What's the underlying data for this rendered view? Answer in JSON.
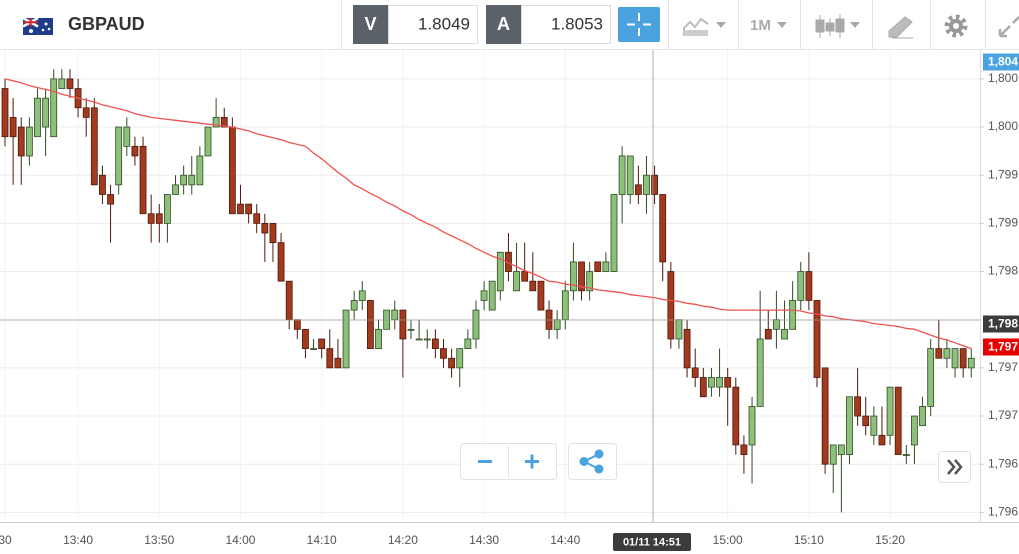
{
  "toolbar": {
    "symbol": "GBPAUD",
    "bid_label": "V",
    "bid": 1.8049,
    "ask_label": "A",
    "ask": 1.8053,
    "interval": "1M"
  },
  "chart_data": {
    "type": "candlestick",
    "categories": [
      "30",
      null,
      null,
      null,
      null,
      null,
      null,
      null,
      null,
      "13:40",
      null,
      null,
      null,
      null,
      null,
      null,
      null,
      null,
      null,
      "13:50",
      null,
      null,
      null,
      null,
      null,
      null,
      null,
      null,
      null,
      "14:00",
      null,
      null,
      null,
      null,
      null,
      null,
      null,
      null,
      null,
      "14:10",
      null,
      null,
      null,
      null,
      null,
      null,
      null,
      null,
      null,
      "14:20",
      null,
      null,
      null,
      null,
      null,
      null,
      null,
      null,
      null,
      "14:30",
      null,
      null,
      null,
      null,
      null,
      null,
      null,
      null,
      null,
      "14:40",
      null,
      null,
      null,
      null,
      null,
      null,
      null,
      null,
      null,
      null,
      null,
      null,
      null,
      null,
      null,
      null,
      null,
      null,
      null,
      "15:00",
      null,
      null,
      null,
      null,
      null,
      null,
      null,
      null,
      null,
      "15:10",
      null,
      null,
      null,
      null,
      null,
      null,
      null,
      null,
      null,
      "15:20",
      null,
      null,
      null,
      null,
      null,
      null,
      null,
      null,
      null,
      null
    ],
    "open": [
      1.8004,
      1.8001,
      1.8,
      1.7997,
      1.7999,
      1.8,
      1.7999,
      1.8004,
      1.8005,
      1.8004,
      1.8002,
      1.8002,
      1.7995,
      1.7993,
      1.7994,
      1.7998,
      1.7998,
      1.7998,
      1.7991,
      1.7991,
      1.799,
      1.7993,
      1.7994,
      1.7994,
      1.7994,
      1.7997,
      1.8,
      1.8001,
      1.8,
      1.7992,
      1.7992,
      1.7991,
      1.799,
      1.799,
      1.7988,
      1.7984,
      1.798,
      1.7979,
      1.7977,
      1.7978,
      1.7977,
      1.7976,
      1.7975,
      1.7981,
      1.7982,
      1.7982,
      1.7977,
      1.7979,
      1.798,
      1.7981,
      1.7979,
      1.7978,
      1.7978,
      1.7978,
      1.7977,
      1.7976,
      1.7975,
      1.7977,
      1.7978,
      1.7982,
      1.7981,
      1.7983,
      1.7987,
      1.7983,
      1.7985,
      1.7984,
      1.7984,
      1.7981,
      1.7979,
      1.798,
      1.7983,
      1.7986,
      1.7983,
      1.7986,
      1.7985,
      1.7985,
      1.7993,
      1.7993,
      1.7994,
      1.7993,
      1.7995,
      1.7993,
      1.7985,
      1.7978,
      1.7979,
      1.7975,
      1.7974,
      1.7973,
      1.7973,
      1.7974,
      1.7973,
      1.7967,
      1.7967,
      1.7971,
      1.7979,
      1.7979,
      1.7978,
      1.7979,
      1.7982,
      1.7985,
      1.7982,
      1.7975,
      1.7965,
      1.7966,
      1.7966,
      1.7972,
      1.797,
      1.7968,
      1.7968,
      1.7968,
      1.7973,
      1.7966,
      1.7967,
      1.7969,
      1.7971,
      1.7977,
      1.7976,
      1.7975,
      1.7977,
      1.7975
    ],
    "high": [
      1.8005,
      1.8003,
      1.8001,
      1.8001,
      1.8004,
      1.8004,
      1.8006,
      1.8006,
      1.8006,
      1.8005,
      1.8003,
      1.8003,
      1.7996,
      1.7994,
      1.8,
      1.8001,
      1.7999,
      1.7999,
      1.7993,
      1.7992,
      1.7993,
      1.7995,
      1.7996,
      1.7997,
      1.7998,
      1.8,
      1.8003,
      1.8002,
      1.8001,
      1.7994,
      1.7992,
      1.7992,
      1.7991,
      1.799,
      1.7989,
      1.7984,
      1.798,
      1.7979,
      1.7978,
      1.7978,
      1.7979,
      1.7978,
      1.7981,
      1.7983,
      1.7984,
      1.7982,
      1.798,
      1.7981,
      1.7982,
      1.7981,
      1.798,
      1.798,
      1.7979,
      1.7979,
      1.7978,
      1.7977,
      1.7977,
      1.7979,
      1.7982,
      1.7984,
      1.7984,
      1.7987,
      1.7989,
      1.7988,
      1.7988,
      1.7987,
      1.7984,
      1.7982,
      1.7981,
      1.7984,
      1.7988,
      1.7986,
      1.7986,
      1.7986,
      1.7987,
      1.7993,
      1.7998,
      1.7997,
      1.7996,
      1.7997,
      1.7996,
      1.7993,
      1.7986,
      1.798,
      1.798,
      1.7977,
      1.7975,
      1.7975,
      1.7977,
      1.7975,
      1.7974,
      1.7968,
      1.7972,
      1.7983,
      1.7981,
      1.7983,
      1.7982,
      1.7984,
      1.7986,
      1.7987,
      1.7982,
      1.7975,
      1.7967,
      1.7967,
      1.7972,
      1.7975,
      1.7972,
      1.7971,
      1.7971,
      1.7973,
      1.7973,
      1.7967,
      1.797,
      1.7972,
      1.7978,
      1.798,
      1.7978,
      1.7977,
      1.7977,
      1.7977
    ],
    "low": [
      1.7998,
      1.7994,
      1.7994,
      1.7996,
      1.7999,
      1.7997,
      1.7999,
      1.8004,
      1.8003,
      1.8001,
      1.7999,
      1.7994,
      1.7992,
      1.7988,
      1.7993,
      1.7997,
      1.7996,
      1.7991,
      1.7988,
      1.7988,
      1.7988,
      1.7993,
      1.7993,
      1.7993,
      1.7994,
      1.7997,
      1.8,
      1.8,
      1.7991,
      1.7991,
      1.799,
      1.7989,
      1.7986,
      1.7986,
      1.7984,
      1.7979,
      1.7978,
      1.7976,
      1.7977,
      1.7976,
      1.7975,
      1.7975,
      1.7975,
      1.798,
      1.7981,
      1.7977,
      1.7977,
      1.7979,
      1.7979,
      1.7974,
      1.7978,
      1.7978,
      1.7977,
      1.7976,
      1.7975,
      1.7974,
      1.7973,
      1.7977,
      1.7977,
      1.7981,
      1.7981,
      1.7982,
      1.7984,
      1.7983,
      1.7984,
      1.7983,
      1.7981,
      1.7978,
      1.7978,
      1.7979,
      1.7982,
      1.7982,
      1.7982,
      1.7985,
      1.7985,
      1.7985,
      1.799,
      1.7992,
      1.7992,
      1.7991,
      1.7992,
      1.7984,
      1.7977,
      1.7977,
      1.7974,
      1.7973,
      1.7972,
      1.7972,
      1.7972,
      1.7969,
      1.7966,
      1.7964,
      1.7963,
      1.7971,
      1.7978,
      1.7977,
      1.7978,
      1.7979,
      1.7981,
      1.7981,
      1.7973,
      1.7964,
      1.7962,
      1.796,
      1.7965,
      1.7969,
      1.7968,
      1.7967,
      1.7967,
      1.7967,
      1.7966,
      1.7965,
      1.7965,
      1.7969,
      1.797,
      1.7976,
      1.7975,
      1.7974,
      1.7974,
      1.7974
    ],
    "close": [
      1.7999,
      1.7999,
      1.7997,
      1.8,
      1.8003,
      1.8003,
      1.8005,
      1.8005,
      1.8004,
      1.8002,
      1.8001,
      1.7994,
      1.7993,
      1.7992,
      1.8,
      1.8,
      1.7997,
      1.7991,
      1.799,
      1.799,
      1.7993,
      1.7994,
      1.7995,
      1.7995,
      1.7997,
      1.8,
      1.8001,
      1.8,
      1.7991,
      1.7991,
      1.7991,
      1.799,
      1.7989,
      1.7988,
      1.7984,
      1.798,
      1.7979,
      1.7977,
      1.7977,
      1.7977,
      1.7975,
      1.7975,
      1.7981,
      1.7982,
      1.7983,
      1.7977,
      1.7979,
      1.7981,
      1.7981,
      1.7978,
      1.7979,
      1.7978,
      1.7978,
      1.7977,
      1.7976,
      1.7975,
      1.7977,
      1.7978,
      1.7981,
      1.7983,
      1.7984,
      1.7987,
      1.7985,
      1.7985,
      1.7984,
      1.7983,
      1.7981,
      1.7979,
      1.798,
      1.7983,
      1.7986,
      1.7983,
      1.7985,
      1.7985,
      1.7986,
      1.7993,
      1.7997,
      1.7997,
      1.7993,
      1.7995,
      1.7993,
      1.7986,
      1.7978,
      1.798,
      1.7975,
      1.7974,
      1.7972,
      1.7974,
      1.7974,
      1.7973,
      1.7967,
      1.7966,
      1.7971,
      1.7978,
      1.7978,
      1.798,
      1.7979,
      1.7982,
      1.7985,
      1.7982,
      1.7974,
      1.7965,
      1.7967,
      1.7967,
      1.7972,
      1.797,
      1.7969,
      1.797,
      1.7967,
      1.7973,
      1.7966,
      1.7966,
      1.797,
      1.7971,
      1.7977,
      1.7976,
      1.7977,
      1.7977,
      1.7975,
      1.7976
    ],
    "up_color": "#8dc07a",
    "down_color": "#a3391d",
    "ma": {
      "color": "#ef5350",
      "values": [
        1.8005,
        1.80048,
        1.80046,
        1.80043,
        1.80041,
        1.80039,
        1.80037,
        1.80034,
        1.80032,
        1.8003,
        1.80028,
        1.80026,
        1.80023,
        1.80021,
        1.80019,
        1.80017,
        1.80014,
        1.80012,
        1.8001,
        1.80009,
        1.80008,
        1.80007,
        1.80006,
        1.80005,
        1.80004,
        1.80003,
        1.80002,
        1.80001,
        1.8,
        1.79998,
        1.79996,
        1.79993,
        1.79991,
        1.79989,
        1.79987,
        1.79984,
        1.79982,
        1.7998,
        1.79973,
        1.79967,
        1.7996,
        1.79953,
        1.79947,
        1.7994,
        1.79936,
        1.79931,
        1.79927,
        1.79922,
        1.79918,
        1.79913,
        1.79909,
        1.79904,
        1.799,
        1.79896,
        1.79891,
        1.79887,
        1.79883,
        1.79879,
        1.79874,
        1.7987,
        1.79866,
        1.79863,
        1.79859,
        1.79855,
        1.79851,
        1.79848,
        1.79844,
        1.7984,
        1.79839,
        1.79837,
        1.79836,
        1.79834,
        1.79833,
        1.79831,
        1.7983,
        1.79829,
        1.79828,
        1.79826,
        1.79825,
        1.79824,
        1.79823,
        1.79821,
        1.7982,
        1.79819,
        1.79817,
        1.79816,
        1.79814,
        1.79813,
        1.79811,
        1.7981,
        1.7981,
        1.7981,
        1.7981,
        1.7981,
        1.7981,
        1.7981,
        1.7981,
        1.7981,
        1.79809,
        1.79807,
        1.79806,
        1.79804,
        1.79803,
        1.79801,
        1.798,
        1.79799,
        1.79798,
        1.79796,
        1.79795,
        1.79794,
        1.79793,
        1.79791,
        1.7979,
        1.79787,
        1.79784,
        1.79781,
        1.79779,
        1.79776,
        1.79773,
        1.7977
      ]
    },
    "ylim": [
      1.7959,
      1.8008
    ],
    "yticks": [
      {
        "value": 1.8005,
        "label": "1,800"
      },
      {
        "value": 1.8,
        "label": "1,800"
      },
      {
        "value": 1.7995,
        "label": "1,799"
      },
      {
        "value": 1.799,
        "label": "1,799"
      },
      {
        "value": 1.7985,
        "label": "1,798"
      },
      {
        "value": 1.7975,
        "label": "1,797"
      },
      {
        "value": 1.797,
        "label": "1,797"
      },
      {
        "value": 1.7965,
        "label": "1,796"
      },
      {
        "value": 1.796,
        "label": "1,796"
      }
    ],
    "grid": true,
    "price_markers": [
      {
        "label": "1,804",
        "color": "#4aa3df"
      },
      {
        "label": "1,798",
        "color": "#3b3b3b"
      },
      {
        "label": "1,797",
        "color": "#e60000"
      }
    ],
    "crosshair_label": "01/11 14:51"
  }
}
